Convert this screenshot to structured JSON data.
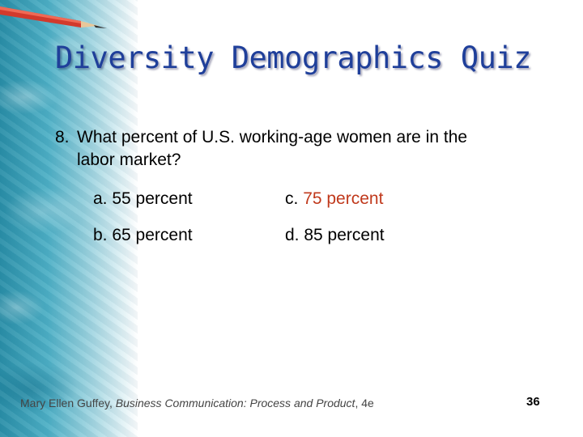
{
  "title": "Diversity Demographics Quiz",
  "question": {
    "number": "8.",
    "line1": "What percent of U.S. working-age women are in the",
    "line2": "labor market?"
  },
  "answers": [
    {
      "letter": "a.",
      "text": "55 percent",
      "correct": false
    },
    {
      "letter": "c.",
      "text": "75 percent",
      "correct": true
    },
    {
      "letter": "b.",
      "text": "65 percent",
      "correct": false
    },
    {
      "letter": "d.",
      "text": "85 percent",
      "correct": false
    }
  ],
  "footer": {
    "author": "Mary Ellen Guffey, ",
    "book": "Business Communication: Process and Product",
    "edition": ", 4e"
  },
  "page_number": "36",
  "colors": {
    "title": "#1f3f9a",
    "correct_answer": "#c0391c",
    "band": "#4eb0c6"
  }
}
